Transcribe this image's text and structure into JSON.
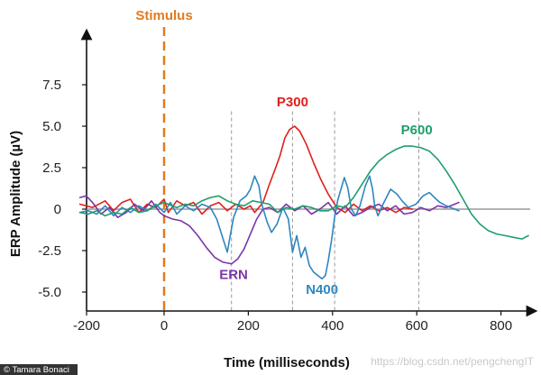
{
  "chart_data": {
    "type": "line",
    "title": "",
    "xlabel": "Time (milliseconds)",
    "ylabel": "ERP Amplitude (µV)",
    "xlim": [
      -200,
      870
    ],
    "ylim": [
      -6,
      10
    ],
    "x_ticks": [
      -200,
      0,
      200,
      400,
      600,
      800
    ],
    "y_ticks": [
      -5.0,
      -2.5,
      0,
      2.5,
      5.0,
      7.5
    ],
    "x_tick_labels": [
      "-200",
      "0",
      "200",
      "400",
      "600",
      "800"
    ],
    "y_tick_labels": [
      "-5.0",
      "-2.5",
      "0",
      "2.5",
      "5.0",
      "7.5"
    ],
    "stimulus": {
      "label": "Stimulus",
      "x": 0,
      "color": "#E07B20"
    },
    "guides_x": [
      160,
      305,
      405,
      605
    ],
    "series": [
      {
        "name": "P300",
        "color": "#E0201B",
        "points": [
          [
            -200,
            0.3
          ],
          [
            -170,
            0.1
          ],
          [
            -140,
            0.5
          ],
          [
            -120,
            -0.1
          ],
          [
            -100,
            0.4
          ],
          [
            -80,
            0.6
          ],
          [
            -60,
            -0.2
          ],
          [
            -40,
            0.3
          ],
          [
            -20,
            0.1
          ],
          [
            0,
            0.6
          ],
          [
            10,
            -0.2
          ],
          [
            30,
            0.5
          ],
          [
            50,
            0.2
          ],
          [
            70,
            0.4
          ],
          [
            90,
            -0.3
          ],
          [
            110,
            0.2
          ],
          [
            130,
            0.4
          ],
          [
            150,
            -0.1
          ],
          [
            170,
            0.3
          ],
          [
            190,
            0.0
          ],
          [
            205,
            0.2
          ],
          [
            215,
            -0.2
          ],
          [
            235,
            0.4
          ],
          [
            250,
            1.5
          ],
          [
            262,
            2.3
          ],
          [
            275,
            3.2
          ],
          [
            287,
            4.3
          ],
          [
            298,
            4.8
          ],
          [
            310,
            5.0
          ],
          [
            322,
            4.7
          ],
          [
            338,
            3.9
          ],
          [
            355,
            2.8
          ],
          [
            372,
            1.8
          ],
          [
            390,
            0.9
          ],
          [
            410,
            0.1
          ],
          [
            430,
            -0.2
          ],
          [
            450,
            0.3
          ],
          [
            470,
            -0.1
          ],
          [
            490,
            0.2
          ],
          [
            510,
            -0.1
          ],
          [
            530,
            0.1
          ],
          [
            550,
            -0.2
          ],
          [
            570,
            0.1
          ],
          [
            590,
            0.0
          ]
        ]
      },
      {
        "name": "ERN",
        "color": "#7B35A8",
        "points": [
          [
            -200,
            0.7
          ],
          [
            -185,
            0.8
          ],
          [
            -170,
            0.4
          ],
          [
            -150,
            -0.3
          ],
          [
            -130,
            0.1
          ],
          [
            -110,
            -0.5
          ],
          [
            -90,
            -0.2
          ],
          [
            -70,
            0.3
          ],
          [
            -50,
            -0.1
          ],
          [
            -30,
            0.5
          ],
          [
            -10,
            -0.2
          ],
          [
            0,
            -0.4
          ],
          [
            20,
            -0.6
          ],
          [
            40,
            -0.7
          ],
          [
            60,
            -1.0
          ],
          [
            80,
            -1.6
          ],
          [
            100,
            -2.3
          ],
          [
            120,
            -2.9
          ],
          [
            140,
            -3.2
          ],
          [
            160,
            -3.3
          ],
          [
            175,
            -3.0
          ],
          [
            190,
            -2.4
          ],
          [
            205,
            -1.5
          ],
          [
            220,
            -0.6
          ],
          [
            235,
            0.0
          ],
          [
            250,
            0.1
          ],
          [
            270,
            -0.2
          ],
          [
            290,
            0.3
          ],
          [
            310,
            -0.1
          ],
          [
            330,
            0.2
          ],
          [
            350,
            -0.3
          ],
          [
            370,
            0.0
          ],
          [
            390,
            0.4
          ],
          [
            410,
            -0.3
          ],
          [
            430,
            0.2
          ],
          [
            450,
            -0.4
          ],
          [
            470,
            -0.2
          ],
          [
            490,
            0.1
          ],
          [
            510,
            0.3
          ],
          [
            530,
            -0.1
          ],
          [
            550,
            0.2
          ],
          [
            570,
            -0.3
          ],
          [
            590,
            -0.2
          ],
          [
            610,
            0.1
          ],
          [
            630,
            -0.1
          ],
          [
            650,
            0.2
          ],
          [
            670,
            0.1
          ],
          [
            690,
            0.3
          ],
          [
            700,
            0.4
          ]
        ]
      },
      {
        "name": "N400",
        "color": "#2E86C1",
        "points": [
          [
            -200,
            -0.2
          ],
          [
            -180,
            -0.1
          ],
          [
            -160,
            -0.3
          ],
          [
            -140,
            0.2
          ],
          [
            -120,
            -0.4
          ],
          [
            -100,
            0.1
          ],
          [
            -80,
            -0.2
          ],
          [
            -60,
            0.2
          ],
          [
            -40,
            -0.1
          ],
          [
            -20,
            0.3
          ],
          [
            0,
            -0.2
          ],
          [
            15,
            0.4
          ],
          [
            30,
            -0.3
          ],
          [
            50,
            0.2
          ],
          [
            70,
            -0.1
          ],
          [
            90,
            0.3
          ],
          [
            110,
            0.1
          ],
          [
            125,
            -0.6
          ],
          [
            140,
            -1.8
          ],
          [
            150,
            -2.6
          ],
          [
            157,
            -1.6
          ],
          [
            165,
            -0.5
          ],
          [
            180,
            0.5
          ],
          [
            195,
            0.8
          ],
          [
            205,
            1.2
          ],
          [
            215,
            2.0
          ],
          [
            225,
            1.4
          ],
          [
            232,
            0.3
          ],
          [
            245,
            -0.8
          ],
          [
            255,
            -1.4
          ],
          [
            268,
            -0.9
          ],
          [
            282,
            0.1
          ],
          [
            295,
            -0.6
          ],
          [
            305,
            -2.6
          ],
          [
            315,
            -1.6
          ],
          [
            325,
            -2.9
          ],
          [
            335,
            -2.3
          ],
          [
            345,
            -3.4
          ],
          [
            355,
            -3.8
          ],
          [
            365,
            -4.0
          ],
          [
            375,
            -4.2
          ],
          [
            383,
            -4.0
          ],
          [
            390,
            -3.1
          ],
          [
            398,
            -1.8
          ],
          [
            405,
            -0.5
          ],
          [
            412,
            0.5
          ],
          [
            420,
            1.2
          ],
          [
            428,
            1.9
          ],
          [
            436,
            1.3
          ],
          [
            445,
            0.0
          ],
          [
            455,
            -0.4
          ],
          [
            465,
            0.2
          ],
          [
            478,
            1.4
          ],
          [
            488,
            2.0
          ],
          [
            495,
            1.2
          ],
          [
            500,
            0.2
          ],
          [
            508,
            -0.4
          ],
          [
            520,
            0.3
          ],
          [
            538,
            1.2
          ],
          [
            553,
            0.9
          ],
          [
            565,
            0.5
          ],
          [
            580,
            0.1
          ],
          [
            598,
            0.3
          ],
          [
            615,
            0.8
          ],
          [
            630,
            1.0
          ],
          [
            642,
            0.7
          ],
          [
            655,
            0.4
          ],
          [
            670,
            0.2
          ],
          [
            690,
            0.0
          ],
          [
            700,
            -0.1
          ]
        ]
      },
      {
        "name": "P600",
        "color": "#1E9E6B",
        "points": [
          [
            -200,
            -0.2
          ],
          [
            -180,
            -0.3
          ],
          [
            -160,
            -0.1
          ],
          [
            -140,
            -0.4
          ],
          [
            -120,
            -0.2
          ],
          [
            -100,
            -0.3
          ],
          [
            -80,
            0.1
          ],
          [
            -60,
            -0.2
          ],
          [
            -40,
            -0.1
          ],
          [
            -20,
            0.2
          ],
          [
            0,
            0.4
          ],
          [
            10,
            0.3
          ],
          [
            30,
            0.1
          ],
          [
            50,
            0.3
          ],
          [
            70,
            0.2
          ],
          [
            90,
            0.5
          ],
          [
            110,
            0.7
          ],
          [
            130,
            0.8
          ],
          [
            150,
            0.5
          ],
          [
            170,
            0.3
          ],
          [
            190,
            0.2
          ],
          [
            210,
            0.5
          ],
          [
            230,
            0.4
          ],
          [
            250,
            0.3
          ],
          [
            270,
            -0.2
          ],
          [
            290,
            0.1
          ],
          [
            310,
            0.0
          ],
          [
            330,
            0.2
          ],
          [
            350,
            0.1
          ],
          [
            370,
            -0.1
          ],
          [
            390,
            -0.1
          ],
          [
            410,
            0.2
          ],
          [
            430,
            0.1
          ],
          [
            450,
            0.7
          ],
          [
            470,
            1.5
          ],
          [
            490,
            2.3
          ],
          [
            510,
            2.9
          ],
          [
            530,
            3.3
          ],
          [
            550,
            3.6
          ],
          [
            570,
            3.8
          ],
          [
            590,
            3.8
          ],
          [
            610,
            3.7
          ],
          [
            630,
            3.5
          ],
          [
            650,
            3.0
          ],
          [
            670,
            2.3
          ],
          [
            690,
            1.5
          ],
          [
            710,
            0.6
          ],
          [
            730,
            -0.3
          ],
          [
            750,
            -0.9
          ],
          [
            770,
            -1.3
          ],
          [
            790,
            -1.5
          ],
          [
            810,
            -1.6
          ],
          [
            830,
            -1.7
          ],
          [
            850,
            -1.8
          ],
          [
            865,
            -1.6
          ]
        ]
      }
    ],
    "annotations": [
      {
        "text": "P300",
        "x": 305,
        "y": 6.2,
        "color": "#E0201B"
      },
      {
        "text": "ERN",
        "x": 165,
        "y": -4.2,
        "color": "#7B35A8"
      },
      {
        "text": "N400",
        "x": 375,
        "y": -5.1,
        "color": "#2E86C1"
      },
      {
        "text": "P600",
        "x": 600,
        "y": 4.5,
        "color": "#1E9E6B"
      }
    ]
  },
  "credit": "© Tamara Bonaci",
  "watermark": "https://blog.csdn.net/pengchengIT"
}
